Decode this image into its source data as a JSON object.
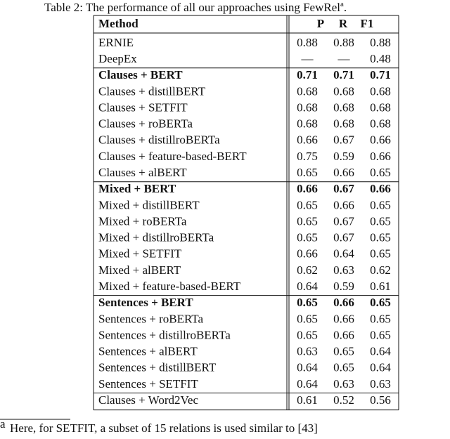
{
  "caption": {
    "text": "Table 2: The performance of all our approaches using FewRel",
    "footnote_mark": "a",
    "end": "."
  },
  "table": {
    "header": [
      "Method",
      "P",
      "R",
      "F1"
    ],
    "groups": [
      [
        {
          "cells": [
            "ERNIE",
            "0.88",
            "0.88",
            "0.88"
          ],
          "bold": false
        },
        {
          "cells": [
            "DeepEx",
            "—",
            "—",
            "0.48"
          ],
          "bold": false
        }
      ],
      [
        {
          "cells": [
            "Clauses + BERT",
            "0.71",
            "0.71",
            "0.71"
          ],
          "bold": true
        },
        {
          "cells": [
            "Clauses + distillBERT",
            "0.68",
            "0.68",
            "0.68"
          ],
          "bold": false
        },
        {
          "cells": [
            "Clauses + SETFIT",
            "0.68",
            "0.68",
            "0.68"
          ],
          "bold": false
        },
        {
          "cells": [
            "Clauses + roBERTa",
            "0.68",
            "0.68",
            "0.68"
          ],
          "bold": false
        },
        {
          "cells": [
            "Clauses + distillroBERTa",
            "0.66",
            "0.67",
            "0.66"
          ],
          "bold": false
        },
        {
          "cells": [
            "Clauses + feature-based-BERT",
            "0.75",
            "0.59",
            "0.66"
          ],
          "bold": false
        },
        {
          "cells": [
            "Clauses + alBERT",
            "0.65",
            "0.66",
            "0.65"
          ],
          "bold": false
        }
      ],
      [
        {
          "cells": [
            "Mixed + BERT",
            "0.66",
            "0.67",
            "0.66"
          ],
          "bold": true
        },
        {
          "cells": [
            "Mixed + distillBERT",
            "0.65",
            "0.66",
            "0.65"
          ],
          "bold": false
        },
        {
          "cells": [
            "Mixed + roBERTa",
            "0.65",
            "0.67",
            "0.65"
          ],
          "bold": false
        },
        {
          "cells": [
            "Mixed + distillroBERTa",
            "0.65",
            "0.67",
            "0.65"
          ],
          "bold": false
        },
        {
          "cells": [
            "Mixed + SETFIT",
            "0.66",
            "0.64",
            "0.65"
          ],
          "bold": false
        },
        {
          "cells": [
            "Mixed + alBERT",
            "0.62",
            "0.63",
            "0.62"
          ],
          "bold": false
        },
        {
          "cells": [
            "Mixed + feature-based-BERT",
            "0.64",
            "0.59",
            "0.61"
          ],
          "bold": false
        }
      ],
      [
        {
          "cells": [
            "Sentences + BERT",
            "0.65",
            "0.66",
            "0.65"
          ],
          "bold": true
        },
        {
          "cells": [
            "Sentences + roBERTa",
            "0.65",
            "0.66",
            "0.65"
          ],
          "bold": false
        },
        {
          "cells": [
            "Sentences + distillroBERTa",
            "0.65",
            "0.66",
            "0.65"
          ],
          "bold": false
        },
        {
          "cells": [
            "Sentences + alBERT",
            "0.63",
            "0.65",
            "0.64"
          ],
          "bold": false
        },
        {
          "cells": [
            "Sentences + distillBERT",
            "0.64",
            "0.65",
            "0.64"
          ],
          "bold": false
        },
        {
          "cells": [
            "Sentences + SETFIT",
            "0.64",
            "0.63",
            "0.63"
          ],
          "bold": false
        }
      ],
      [
        {
          "cells": [
            "Clauses + Word2Vec",
            "0.61",
            "0.52",
            "0.56"
          ],
          "bold": false
        }
      ]
    ]
  },
  "footnote": {
    "mark": "a",
    "text": "Here, for SETFIT, a subset of 15 relations is used similar to [43]"
  }
}
